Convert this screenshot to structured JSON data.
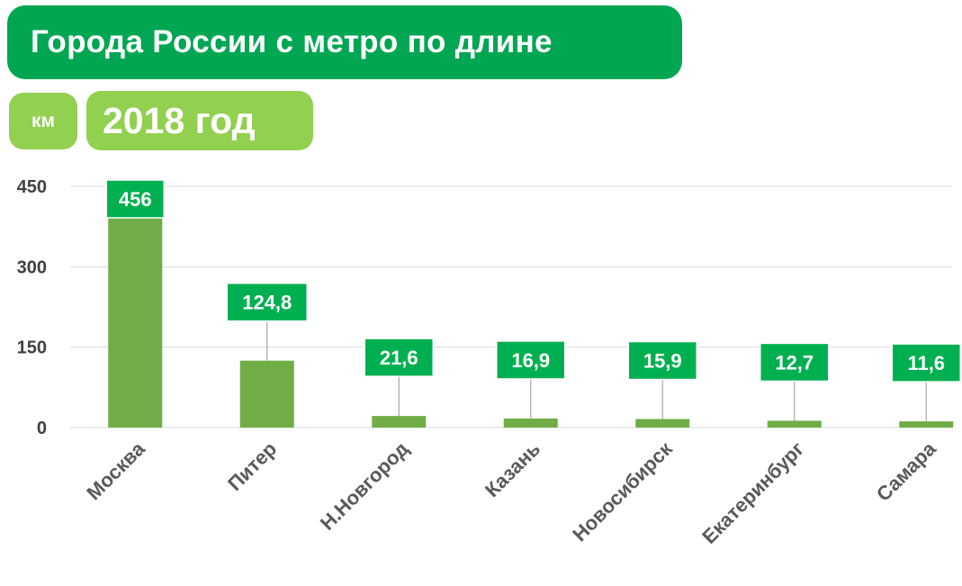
{
  "header": {
    "title": "Города России с метро по длине",
    "unit": "км",
    "year": "2018 год"
  },
  "colors": {
    "title_bg": "#00a651",
    "accent_light": "#92d050",
    "bar": "#70ad47",
    "label_bg": "#00b050",
    "grid": "#d9d9d9",
    "axis_text": "#404040",
    "category_text": "#595959"
  },
  "chart_data": {
    "type": "bar",
    "title": "Города России с метро по длине",
    "subtitle": "2018 год",
    "ylabel": "км",
    "xlabel": "",
    "categories": [
      "Москва",
      "Питер",
      "Н.Новгород",
      "Казань",
      "Новосибирск",
      "Екатеринбург",
      "Самара"
    ],
    "values": [
      456,
      124.8,
      21.6,
      16.9,
      15.9,
      12.7,
      11.6
    ],
    "value_labels": [
      "456",
      "124,8",
      "21,6",
      "16,9",
      "15,9",
      "12,7",
      "11,6"
    ],
    "ylim": [
      0,
      450
    ],
    "yticks": [
      0,
      150,
      300,
      450
    ],
    "ytick_labels": [
      "0",
      "150",
      "300",
      "450"
    ],
    "grid": true,
    "legend": "none"
  }
}
